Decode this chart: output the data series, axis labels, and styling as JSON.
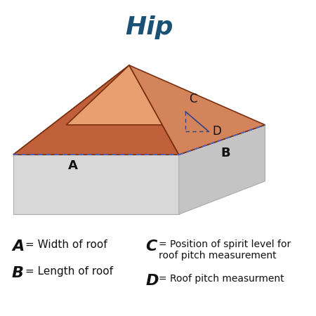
{
  "title": "Hip",
  "title_color": "#1a5276",
  "title_fontsize": 26,
  "background_color": "#ffffff",
  "roof_color_front_left": "#c0603a",
  "roof_color_top": "#e8a070",
  "roof_color_right_hip": "#d4845a",
  "wall_color_front": "#d8d8d8",
  "wall_color_side": "#c4c4c4",
  "dashed_color": "#4466cc",
  "triangle_color": "#334488",
  "legend_A": "= Width of roof",
  "legend_B": "= Length of roof",
  "legend_C": "= Position of spirit level for\nroof pitch measurement",
  "legend_D": "= Roof pitch measurment"
}
